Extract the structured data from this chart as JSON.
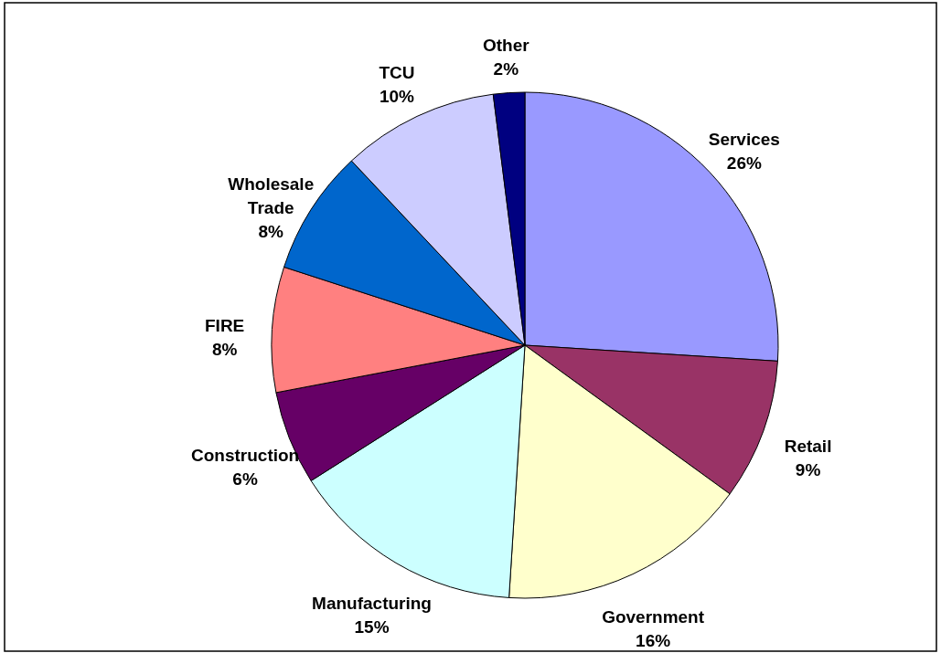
{
  "chart_data": {
    "type": "pie",
    "categories": [
      "Services",
      "Retail",
      "Government",
      "Manufacturing",
      "Construction",
      "FIRE",
      "Wholesale Trade",
      "TCU",
      "Other"
    ],
    "values": [
      26,
      9,
      16,
      15,
      6,
      8,
      8,
      10,
      2
    ],
    "value_labels": [
      "26%",
      "9%",
      "16%",
      "15%",
      "6%",
      "8%",
      "8%",
      "10%",
      "2%"
    ],
    "colors": [
      "#9999ff",
      "#993366",
      "#ffffcc",
      "#ccffff",
      "#660066",
      "#ff8080",
      "#0066cc",
      "#ccccff",
      "#000080"
    ]
  }
}
